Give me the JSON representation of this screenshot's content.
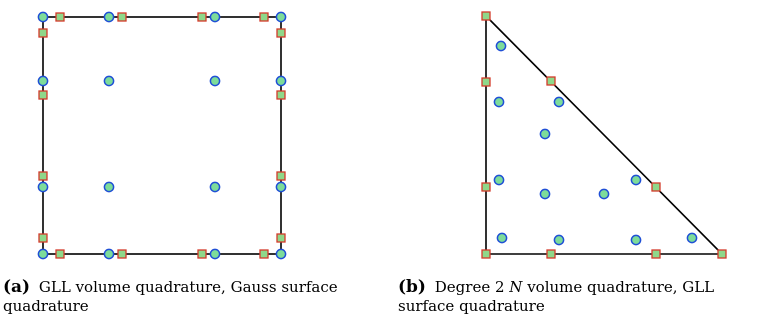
{
  "colors": {
    "volume_node_fill": "#7ddc9a",
    "volume_node_stroke": "#1f4fd6",
    "surface_node_fill": "#8fd88a",
    "surface_node_stroke": "#d43a2a",
    "edge": "#000000"
  },
  "panels": [
    {
      "id": "a",
      "shape": "square",
      "caption_tag": "(a)",
      "caption_text": "GLL volume quadrature, Gauss surface quadrature",
      "volume_node_shape": "circle",
      "surface_node_shape": "square"
    },
    {
      "id": "b",
      "shape": "triangle",
      "caption_tag": "(b)",
      "caption_pre": "Degree 2",
      "caption_var": "N",
      "caption_post": "volume quadrature, GLL surface quadrature",
      "volume_node_shape": "circle",
      "surface_node_shape": "square"
    }
  ]
}
